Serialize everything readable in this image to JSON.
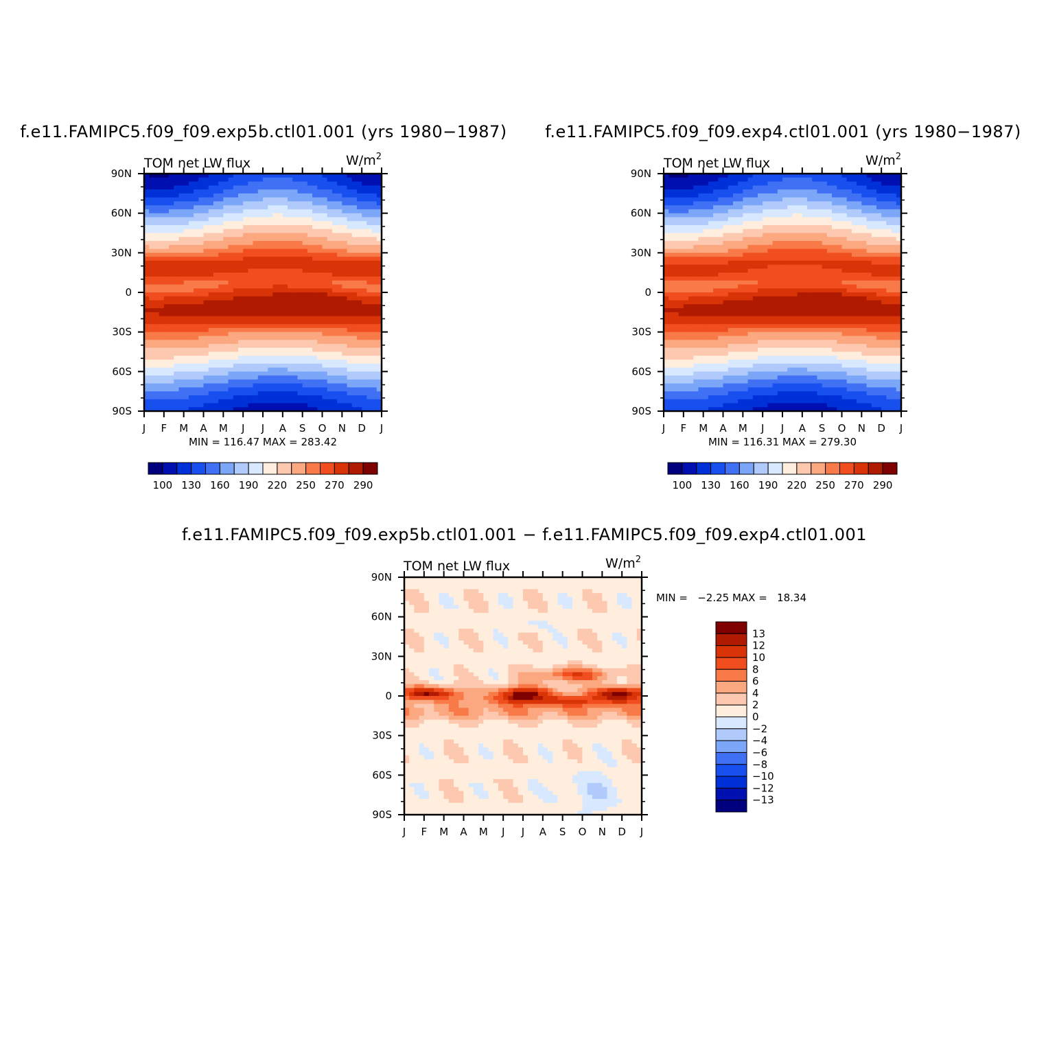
{
  "palette": {
    "diverging_colors": [
      "#00007f",
      "#0010b0",
      "#0030d8",
      "#1850f0",
      "#4070f4",
      "#7ca6f8",
      "#b0cafc",
      "#d8e8fe",
      "#ffeedd",
      "#fcc9b0",
      "#fba880",
      "#f87a48",
      "#f04e1e",
      "#d83408",
      "#b01a00",
      "#7f0000"
    ]
  },
  "chart_data": [
    {
      "type": "heatmap",
      "id": "panel-exp5b",
      "title": "f.e11.FAMIPC5.f09_f09.exp5b.ctl01.001 (yrs 1980−1987)",
      "left_label": "TOM net LW flux",
      "units_base": "W/m",
      "units_exp": "2",
      "x_ticks": [
        "J",
        "F",
        "M",
        "A",
        "M",
        "J",
        "J",
        "A",
        "S",
        "O",
        "N",
        "D",
        "J"
      ],
      "y_ticks": [
        "90N",
        "60N",
        "30N",
        "0",
        "30S",
        "60S",
        "90S"
      ],
      "xlim": [
        0,
        12
      ],
      "ylim": [
        -90,
        90
      ],
      "min_max_text": "MIN = 116.47 MAX = 283.42",
      "levels": [
        100,
        115,
        130,
        145,
        160,
        175,
        190,
        205,
        220,
        235,
        250,
        260,
        270,
        280,
        290
      ],
      "colorbar_labels": [
        "100",
        "130",
        "160",
        "190",
        "220",
        "250",
        "270",
        "290"
      ],
      "field": {
        "kind": "mean",
        "variant": 0
      }
    },
    {
      "type": "heatmap",
      "id": "panel-exp4",
      "title": "f.e11.FAMIPC5.f09_f09.exp4.ctl01.001 (yrs 1980−1987)",
      "left_label": "TOM net LW flux",
      "units_base": "W/m",
      "units_exp": "2",
      "x_ticks": [
        "J",
        "F",
        "M",
        "A",
        "M",
        "J",
        "J",
        "A",
        "S",
        "O",
        "N",
        "D",
        "J"
      ],
      "y_ticks": [
        "90N",
        "60N",
        "30N",
        "0",
        "30S",
        "60S",
        "90S"
      ],
      "xlim": [
        0,
        12
      ],
      "ylim": [
        -90,
        90
      ],
      "min_max_text": "MIN = 116.31 MAX = 279.30",
      "levels": [
        100,
        115,
        130,
        145,
        160,
        175,
        190,
        205,
        220,
        235,
        250,
        260,
        270,
        280,
        290
      ],
      "colorbar_labels": [
        "100",
        "130",
        "160",
        "190",
        "220",
        "250",
        "270",
        "290"
      ],
      "field": {
        "kind": "mean",
        "variant": 1
      }
    },
    {
      "type": "heatmap",
      "id": "panel-diff",
      "title": "f.e11.FAMIPC5.f09_f09.exp5b.ctl01.001 − f.e11.FAMIPC5.f09_f09.exp4.ctl01.001",
      "left_label": "TOM net LW flux",
      "units_base": "W/m",
      "units_exp": "2",
      "x_ticks": [
        "J",
        "F",
        "M",
        "A",
        "M",
        "J",
        "J",
        "A",
        "S",
        "O",
        "N",
        "D",
        "J"
      ],
      "y_ticks": [
        "90N",
        "60N",
        "30N",
        "0",
        "30S",
        "60S",
        "90S"
      ],
      "xlim": [
        0,
        12
      ],
      "ylim": [
        -90,
        90
      ],
      "min_max_text": "MIN =   −2.25 MAX =   18.34",
      "levels": [
        -13,
        -12,
        -10,
        -8,
        -6,
        -4,
        -2,
        0,
        2,
        4,
        6,
        8,
        10,
        12,
        13
      ],
      "colorbar_labels": [
        "13",
        "12",
        "10",
        "8",
        "6",
        "4",
        "2",
        "0",
        "−2",
        "−4",
        "−6",
        "−8",
        "−10",
        "−12",
        "−13"
      ],
      "field": {
        "kind": "difference",
        "variant": 2
      }
    }
  ]
}
